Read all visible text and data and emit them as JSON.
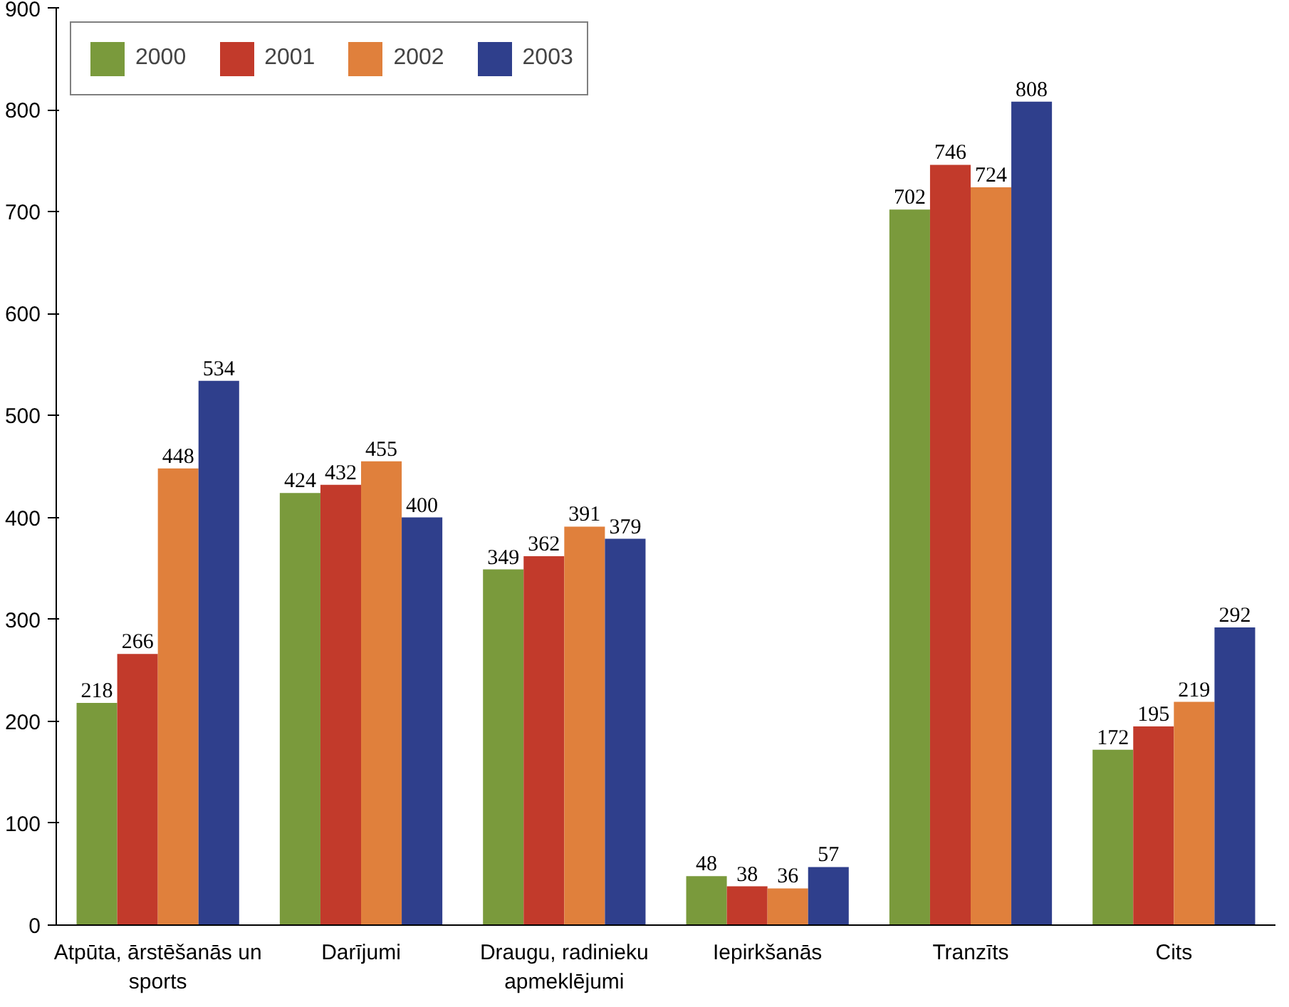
{
  "chart_data": {
    "type": "bar",
    "categories": [
      "Atpūta, ārstēšanās un sports",
      "Darījumi",
      "Draugu, radinieku apmeklējumi",
      "Iepirkšanās",
      "Tranzīts",
      "Cits"
    ],
    "series": [
      {
        "name": "2000",
        "color": "#7a9a3c",
        "values": [
          218,
          424,
          349,
          48,
          702,
          172
        ]
      },
      {
        "name": "2001",
        "color": "#c23a2b",
        "values": [
          266,
          432,
          362,
          38,
          746,
          195
        ]
      },
      {
        "name": "2002",
        "color": "#e0803c",
        "values": [
          448,
          455,
          391,
          36,
          724,
          219
        ]
      },
      {
        "name": "2003",
        "color": "#2f3f8c",
        "values": [
          534,
          400,
          379,
          57,
          808,
          292
        ]
      }
    ],
    "ylim": [
      0,
      900
    ],
    "yticks": [
      0,
      100,
      200,
      300,
      400,
      500,
      600,
      700,
      800,
      900
    ],
    "data_labels": true,
    "grid": false,
    "legend": "top left"
  }
}
